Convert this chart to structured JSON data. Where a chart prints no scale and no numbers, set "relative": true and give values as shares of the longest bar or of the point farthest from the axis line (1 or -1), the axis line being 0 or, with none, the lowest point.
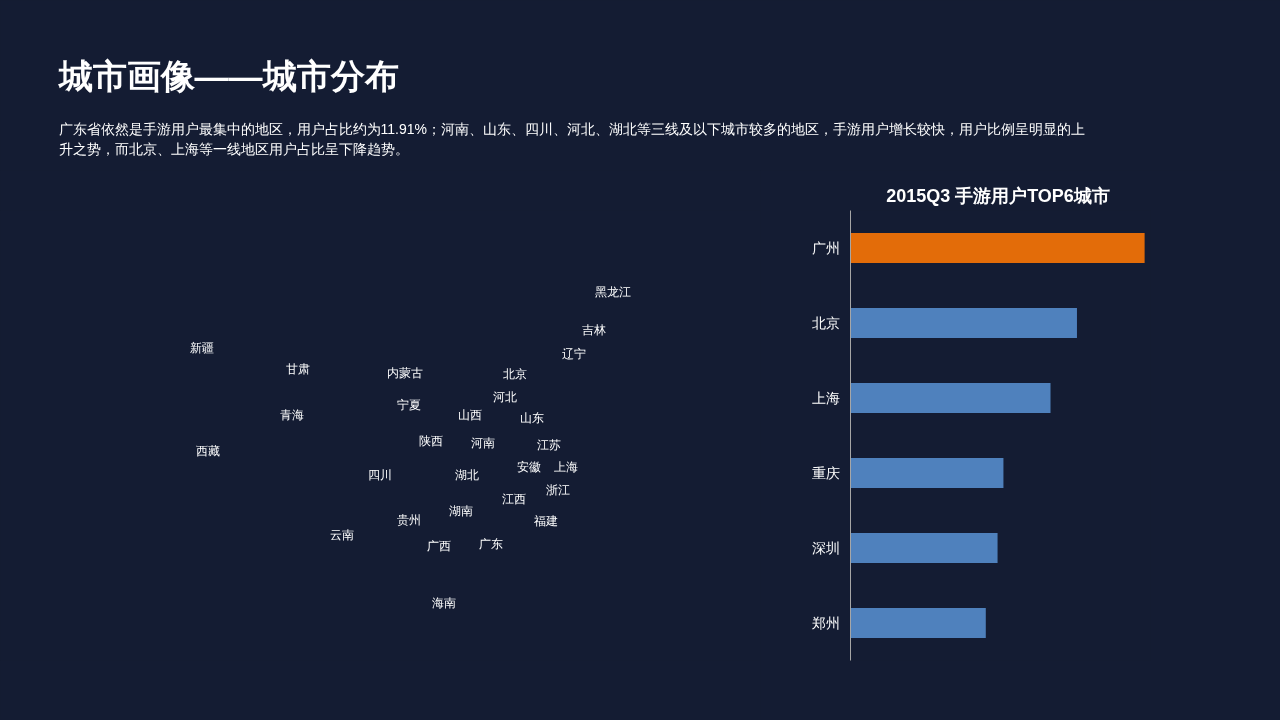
{
  "chart_data": [
    {
      "type": "other",
      "title": "城市画像——城市分布",
      "subtitle": "广东省依然是手游用户最集中的地区，用户占比约为11.91%；河南、山东、四川、河北、湖北等三线及以下城市较多的地区，手游用户增长较快，用户比例呈明显的上升之势，而北京、上海等一线地区用户占比呈下降趋势。",
      "annotations": [
        "新疆",
        "甘肃",
        "内蒙古",
        "黑龙江",
        "吉林",
        "辽宁",
        "青海",
        "西藏",
        "宁夏",
        "山西",
        "河北",
        "北京",
        "山东",
        "陕西",
        "河南",
        "江苏",
        "安徽",
        "上海",
        "四川",
        "湖北",
        "浙江",
        "云南",
        "贵州",
        "湖南",
        "江西",
        "福建",
        "广西",
        "广东",
        "海南"
      ]
    },
    {
      "type": "bar",
      "orientation": "horizontal",
      "relative": true,
      "title": "2015Q3  手游用户TOP6城市",
      "categories": [
        "广州",
        "北京",
        "上海",
        "重庆",
        "深圳",
        "郑州"
      ],
      "values": [
        1,
        0.77,
        0.68,
        0.52,
        0.5,
        0.46
      ],
      "colors": [
        "#e36c09",
        "#4f81bd",
        "#4f81bd",
        "#4f81bd",
        "#4f81bd",
        "#4f81bd"
      ]
    }
  ]
}
